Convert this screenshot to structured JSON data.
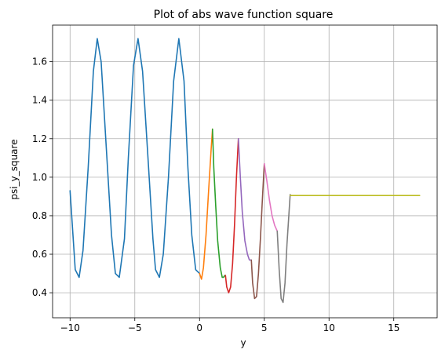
{
  "chart_data": {
    "type": "line",
    "title": "Plot of abs wave function square",
    "xlabel": "y",
    "ylabel": "psi_y_square",
    "xlim": [
      -11.35,
      18.35
    ],
    "ylim": [
      0.27,
      1.79
    ],
    "xticks": [
      -10,
      -5,
      0,
      5,
      10,
      15
    ],
    "yticks": [
      0.4,
      0.6,
      0.8,
      1.0,
      1.2,
      1.4,
      1.6
    ],
    "xtick_labels": [
      "−10",
      "−5",
      "0",
      "5",
      "10",
      "15"
    ],
    "ytick_labels": [
      "0.4",
      "0.6",
      "0.8",
      "1.0",
      "1.2",
      "1.4",
      "1.6"
    ],
    "grid": true,
    "series": [
      {
        "color": "#1f77b4",
        "x": [
          -10.0,
          -9.6,
          -9.3,
          -9.0,
          -8.6,
          -8.2,
          -7.9,
          -7.6,
          -7.2,
          -6.8,
          -6.5,
          -6.2,
          -5.8,
          -5.5,
          -5.1,
          -4.75,
          -4.4,
          -4.0,
          -3.6,
          -3.4,
          -3.1,
          -2.8,
          -2.4,
          -2.0,
          -1.6,
          -1.2,
          -0.9,
          -0.6,
          -0.3,
          0.0
        ],
        "y": [
          0.93,
          0.52,
          0.48,
          0.62,
          1.05,
          1.55,
          1.72,
          1.6,
          1.15,
          0.7,
          0.5,
          0.48,
          0.68,
          1.1,
          1.58,
          1.72,
          1.55,
          1.12,
          0.68,
          0.52,
          0.48,
          0.6,
          1.0,
          1.5,
          1.72,
          1.5,
          1.05,
          0.7,
          0.52,
          0.5
        ]
      },
      {
        "color": "#ff7f0e",
        "x": [
          0.0,
          0.15,
          0.3,
          0.5,
          0.7,
          0.9,
          1.0
        ],
        "y": [
          0.5,
          0.47,
          0.53,
          0.7,
          0.93,
          1.15,
          1.25
        ]
      },
      {
        "color": "#2ca02c",
        "x": [
          1.0,
          1.1,
          1.25,
          1.4,
          1.6,
          1.75,
          1.85,
          1.95,
          2.0
        ],
        "y": [
          1.25,
          1.05,
          0.85,
          0.67,
          0.53,
          0.48,
          0.48,
          0.49,
          0.49
        ]
      },
      {
        "color": "#d62728",
        "x": [
          2.0,
          2.1,
          2.25,
          2.4,
          2.55,
          2.7,
          2.85,
          3.0
        ],
        "y": [
          0.49,
          0.43,
          0.4,
          0.43,
          0.55,
          0.75,
          1.0,
          1.2
        ]
      },
      {
        "color": "#9467bd",
        "x": [
          3.0,
          3.15,
          3.3,
          3.5,
          3.7,
          3.85,
          4.0
        ],
        "y": [
          1.2,
          1.0,
          0.82,
          0.67,
          0.6,
          0.57,
          0.57
        ]
      },
      {
        "color": "#8c564b",
        "x": [
          4.0,
          4.1,
          4.25,
          4.4,
          4.55,
          4.7,
          4.85,
          5.0
        ],
        "y": [
          0.57,
          0.45,
          0.37,
          0.38,
          0.5,
          0.68,
          0.88,
          1.07
        ]
      },
      {
        "color": "#e377c2",
        "x": [
          5.0,
          5.2,
          5.4,
          5.6,
          5.8,
          6.0
        ],
        "y": [
          1.07,
          0.98,
          0.88,
          0.8,
          0.75,
          0.72
        ]
      },
      {
        "color": "#7f7f7f",
        "x": [
          6.0,
          6.15,
          6.3,
          6.45,
          6.6,
          6.75,
          7.0
        ],
        "y": [
          0.72,
          0.52,
          0.37,
          0.35,
          0.45,
          0.65,
          0.91
        ]
      },
      {
        "color": "#bcbd22",
        "x": [
          7.0,
          17.0
        ],
        "y": [
          0.905,
          0.905
        ]
      }
    ]
  }
}
